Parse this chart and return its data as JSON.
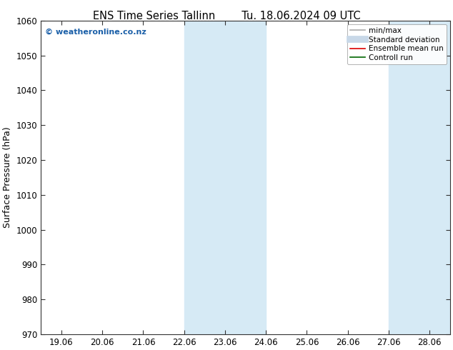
{
  "title_left": "ENS Time Series Tallinn",
  "title_right": "Tu. 18.06.2024 09 UTC",
  "ylabel": "Surface Pressure (hPa)",
  "ylim": [
    970,
    1060
  ],
  "yticks": [
    970,
    980,
    990,
    1000,
    1010,
    1020,
    1030,
    1040,
    1050,
    1060
  ],
  "xtick_labels": [
    "19.06",
    "20.06",
    "21.06",
    "22.06",
    "23.06",
    "24.06",
    "25.06",
    "26.06",
    "27.06",
    "28.06"
  ],
  "shaded_regions": [
    {
      "xmin": 3.0,
      "xmax": 5.0
    },
    {
      "xmin": 8.0,
      "xmax": 9.5
    }
  ],
  "shaded_color": "#d6eaf5",
  "watermark": "© weatheronline.co.nz",
  "watermark_color": "#1a5fa8",
  "bg_color": "#ffffff",
  "legend_entries": [
    {
      "label": "min/max",
      "color": "#aaaaaa",
      "lw": 1.2
    },
    {
      "label": "Standard deviation",
      "color": "#c8d8e8",
      "lw": 7
    },
    {
      "label": "Ensemble mean run",
      "color": "#dd0000",
      "lw": 1.2
    },
    {
      "label": "Controll run",
      "color": "#006600",
      "lw": 1.2
    }
  ],
  "title_fontsize": 10.5,
  "ylabel_fontsize": 9,
  "tick_fontsize": 8.5
}
